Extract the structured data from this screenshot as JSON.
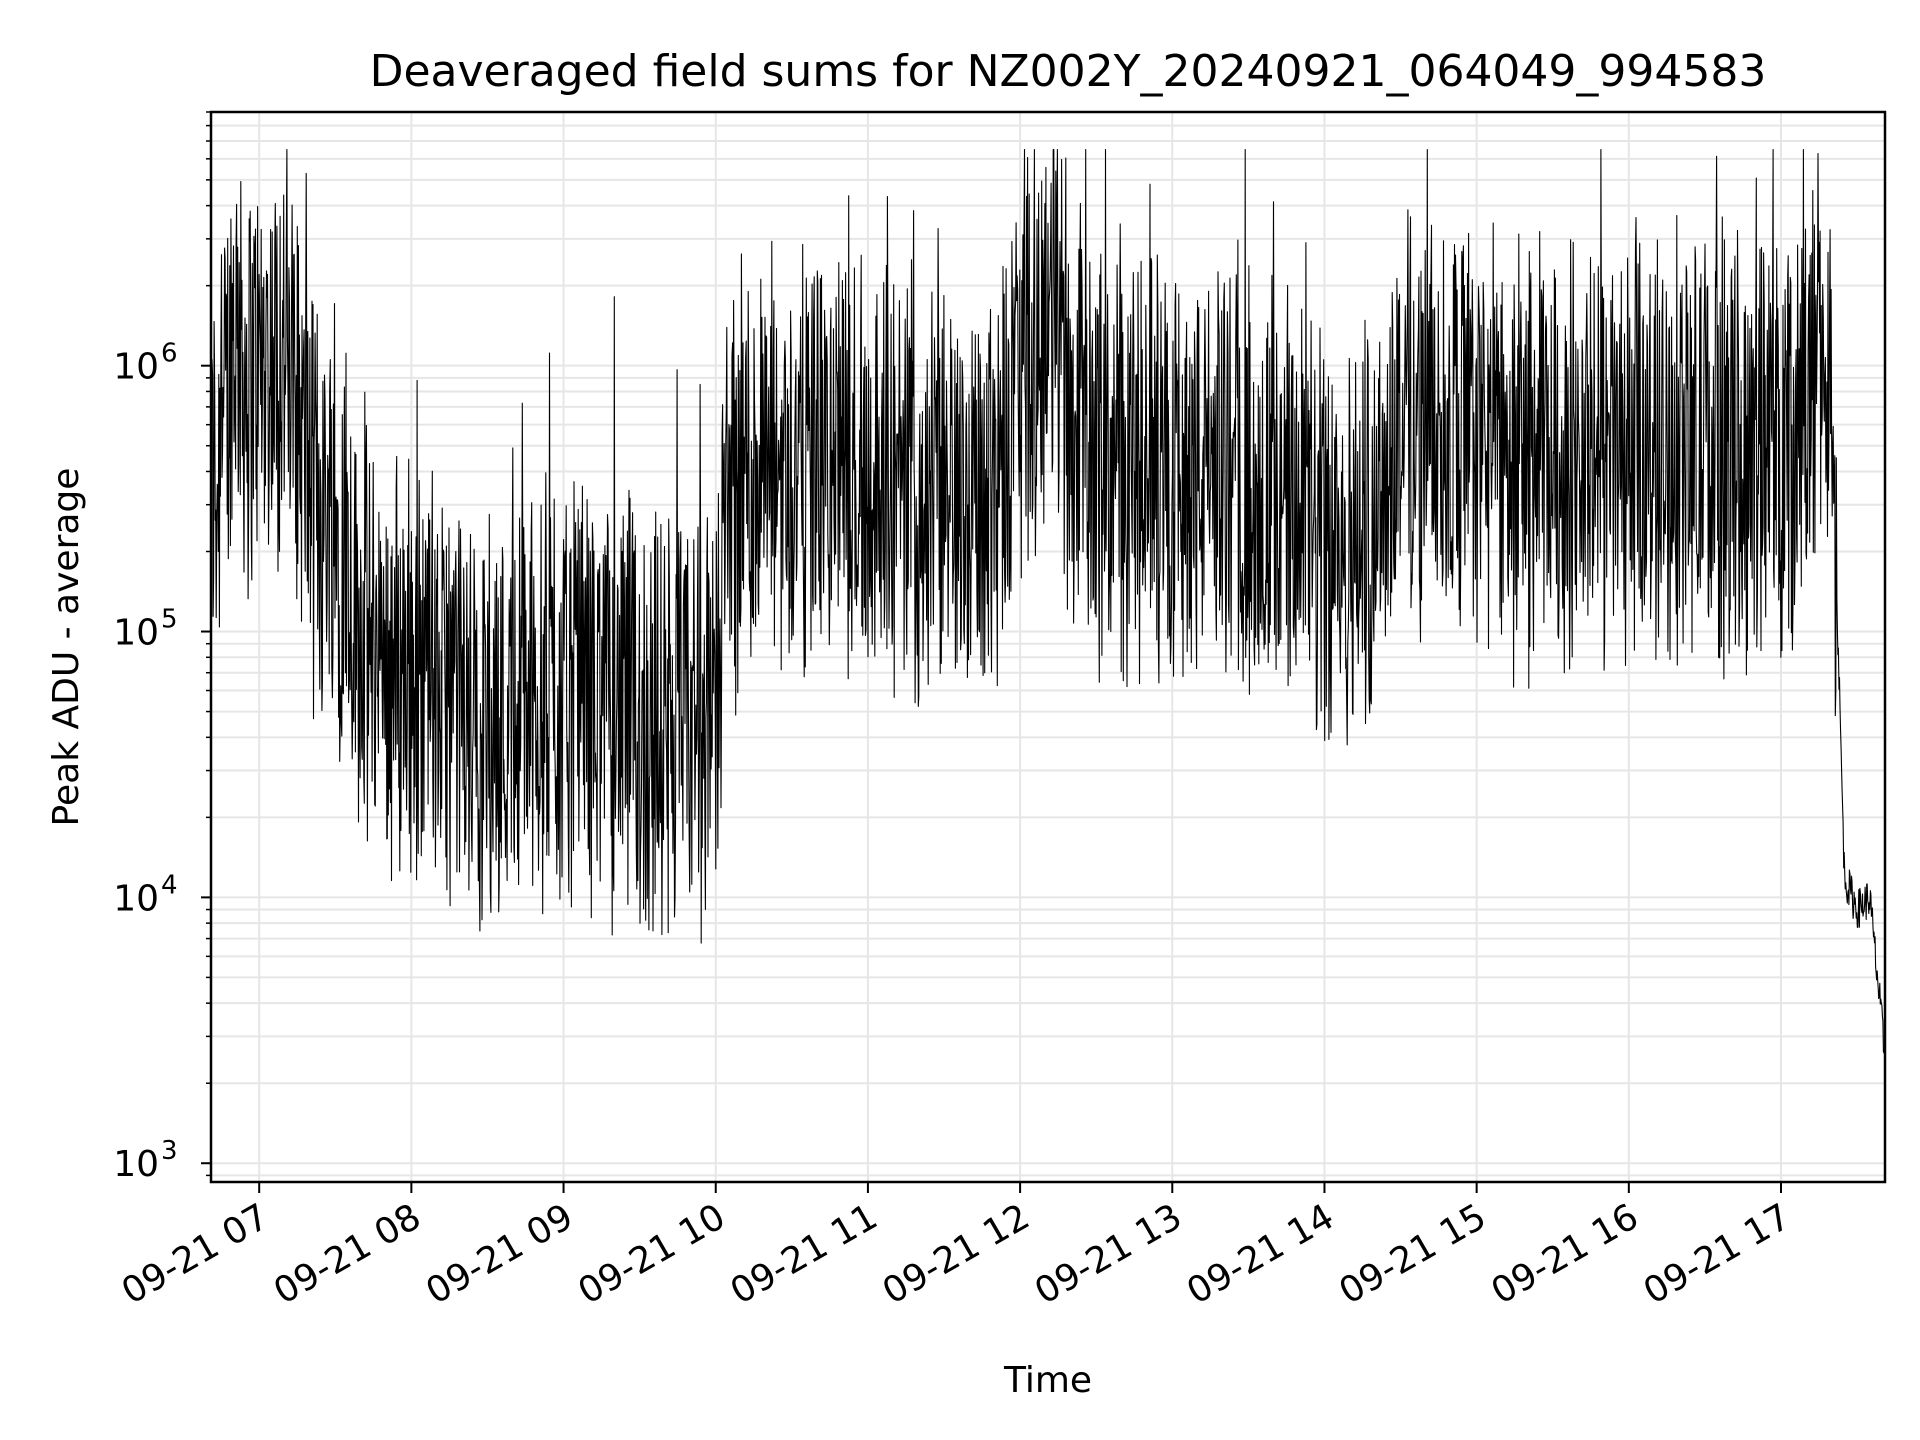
{
  "chart_data": {
    "type": "line",
    "title": "Deaveraged field sums for NZ002Y_20240921_064049_994583",
    "xlabel": "Time",
    "ylabel": "Peak ADU - average",
    "y_scale": "log",
    "grid": true,
    "grid_minor": true,
    "line_color": "#000000",
    "grid_color": "#e6e6e6",
    "xlim": [
      "2024-09-21 06:41",
      "2024-09-21 17:41"
    ],
    "ylim": [
      850,
      9000000
    ],
    "x_ticks": [
      {
        "t": "2024-09-21 07:00",
        "label": "09-21 07"
      },
      {
        "t": "2024-09-21 08:00",
        "label": "09-21 08"
      },
      {
        "t": "2024-09-21 09:00",
        "label": "09-21 09"
      },
      {
        "t": "2024-09-21 10:00",
        "label": "09-21 10"
      },
      {
        "t": "2024-09-21 11:00",
        "label": "09-21 11"
      },
      {
        "t": "2024-09-21 12:00",
        "label": "09-21 12"
      },
      {
        "t": "2024-09-21 13:00",
        "label": "09-21 13"
      },
      {
        "t": "2024-09-21 14:00",
        "label": "09-21 14"
      },
      {
        "t": "2024-09-21 15:00",
        "label": "09-21 15"
      },
      {
        "t": "2024-09-21 16:00",
        "label": "09-21 16"
      },
      {
        "t": "2024-09-21 17:00",
        "label": "09-21 17"
      }
    ],
    "y_ticks": [
      {
        "value": 1000,
        "base": "10",
        "exp": "3"
      },
      {
        "value": 10000,
        "base": "10",
        "exp": "4"
      },
      {
        "value": 100000,
        "base": "10",
        "exp": "5"
      },
      {
        "value": 1000000,
        "base": "10",
        "exp": "6"
      }
    ],
    "series": [
      {
        "x": [
          "2024-09-21 06:41",
          "2024-09-21 06:45",
          "2024-09-21 06:50",
          "2024-09-21 06:55",
          "2024-09-21 07:00",
          "2024-09-21 07:05",
          "2024-09-21 07:10",
          "2024-09-21 07:15",
          "2024-09-21 07:20",
          "2024-09-21 07:25",
          "2024-09-21 07:30",
          "2024-09-21 07:35",
          "2024-09-21 07:40",
          "2024-09-21 07:45",
          "2024-09-21 07:50",
          "2024-09-21 07:55",
          "2024-09-21 08:00",
          "2024-09-21 08:10",
          "2024-09-21 08:20",
          "2024-09-21 08:30",
          "2024-09-21 08:40",
          "2024-09-21 08:50",
          "2024-09-21 09:00",
          "2024-09-21 09:10",
          "2024-09-21 09:20",
          "2024-09-21 09:30",
          "2024-09-21 09:40",
          "2024-09-21 09:50",
          "2024-09-21 10:00",
          "2024-09-21 10:05",
          "2024-09-21 10:15",
          "2024-09-21 10:30",
          "2024-09-21 10:45",
          "2024-09-21 11:00",
          "2024-09-21 11:15",
          "2024-09-21 11:30",
          "2024-09-21 11:45",
          "2024-09-21 11:55",
          "2024-09-21 12:05",
          "2024-09-21 12:15",
          "2024-09-21 12:20",
          "2024-09-21 12:25",
          "2024-09-21 12:35",
          "2024-09-21 12:45",
          "2024-09-21 13:00",
          "2024-09-21 13:15",
          "2024-09-21 13:30",
          "2024-09-21 13:45",
          "2024-09-21 14:00",
          "2024-09-21 14:15",
          "2024-09-21 14:30",
          "2024-09-21 14:45",
          "2024-09-21 15:00",
          "2024-09-21 15:15",
          "2024-09-21 15:30",
          "2024-09-21 15:45",
          "2024-09-21 16:00",
          "2024-09-21 16:15",
          "2024-09-21 16:30",
          "2024-09-21 16:45",
          "2024-09-21 17:00",
          "2024-09-21 17:10",
          "2024-09-21 17:15",
          "2024-09-21 17:20",
          "2024-09-21 17:25",
          "2024-09-21 17:30",
          "2024-09-21 17:35",
          "2024-09-21 17:41"
        ],
        "y": [
          350000,
          450000,
          1400000,
          900000,
          950000,
          1000000,
          1100000,
          700000,
          350000,
          300000,
          250000,
          180000,
          100000,
          80000,
          70000,
          75000,
          70000,
          60000,
          50000,
          45000,
          50000,
          60000,
          55000,
          60000,
          55000,
          45000,
          40000,
          45000,
          55000,
          350000,
          400000,
          420000,
          450000,
          380000,
          330000,
          300000,
          320000,
          600000,
          1300000,
          1500000,
          700000,
          500000,
          450000,
          380000,
          420000,
          400000,
          380000,
          280000,
          200000,
          220000,
          650000,
          600000,
          500000,
          480000,
          450000,
          450000,
          460000,
          480000,
          480000,
          500000,
          550000,
          650000,
          1200000,
          700000,
          12000,
          9000,
          10000,
          2500
        ]
      }
    ],
    "annotations": "dense high-frequency variation between roughly 1.5e4 and 6e6 throughout"
  }
}
